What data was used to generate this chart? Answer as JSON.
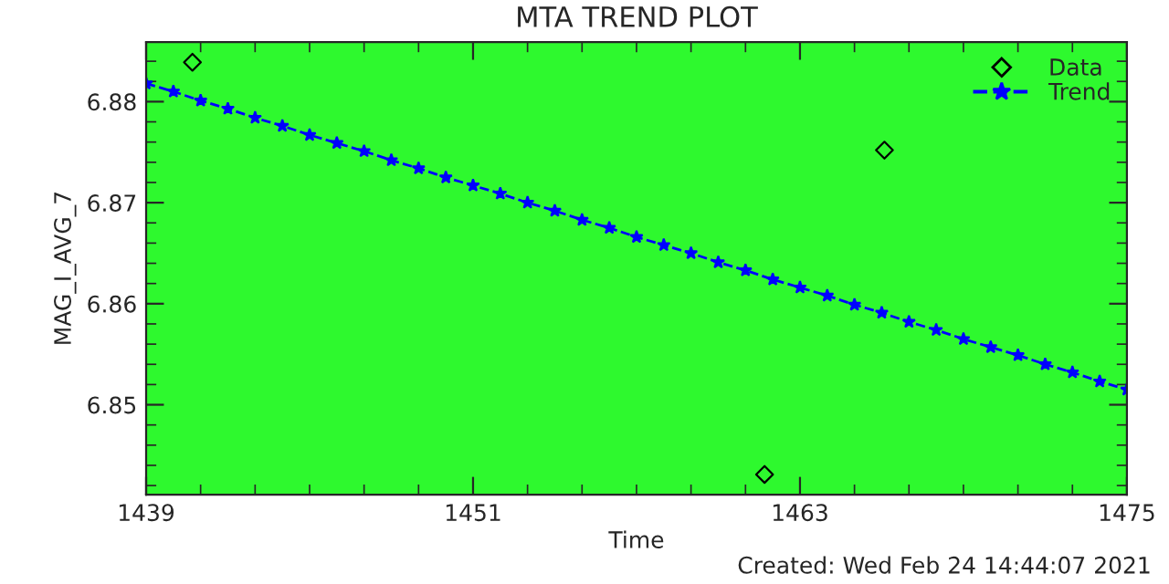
{
  "chart_data": {
    "type": "scatter",
    "title": "MTA TREND PLOT",
    "xlabel": "Time",
    "ylabel": "MAG_I_AVG_7",
    "annotations": [
      "Created: Wed Feb 24 14:44:07 2021"
    ],
    "xlim": [
      1439,
      1475
    ],
    "xticks": [
      1439,
      1451,
      1463,
      1475
    ],
    "ylim": [
      6.8411,
      6.8859
    ],
    "yticks": [
      6.85,
      6.86,
      6.87,
      6.88
    ],
    "legend": "top right",
    "grid": false,
    "series": [
      {
        "name": "Data",
        "marker": "diamond",
        "color": "#000000",
        "x": [
          1440.7,
          1461.7,
          1466.1
        ],
        "values": [
          6.8839,
          6.8431,
          6.8752
        ]
      },
      {
        "name": "Trend",
        "type": "line",
        "marker": "star",
        "line_style": "dashed",
        "color": "#0000ff",
        "x": [
          1439,
          1440,
          1441,
          1442,
          1443,
          1444,
          1445,
          1446,
          1447,
          1448,
          1449,
          1450,
          1451,
          1452,
          1453,
          1454,
          1455,
          1456,
          1457,
          1458,
          1459,
          1460,
          1461,
          1462,
          1463,
          1464,
          1465,
          1466,
          1467,
          1468,
          1469,
          1470,
          1471,
          1472,
          1473,
          1474,
          1475
        ],
        "values": [
          6.8818,
          6.881,
          6.8801,
          6.8793,
          6.8784,
          6.8776,
          6.8767,
          6.8759,
          6.8751,
          6.8742,
          6.8734,
          6.8725,
          6.8717,
          6.8709,
          6.87,
          6.8692,
          6.8683,
          6.8675,
          6.8666,
          6.8658,
          6.865,
          6.8641,
          6.8633,
          6.8624,
          6.8616,
          6.8608,
          6.8599,
          6.8591,
          6.8582,
          6.8574,
          6.8565,
          6.8557,
          6.8549,
          6.854,
          6.8532,
          6.8523,
          6.8515
        ]
      }
    ]
  }
}
